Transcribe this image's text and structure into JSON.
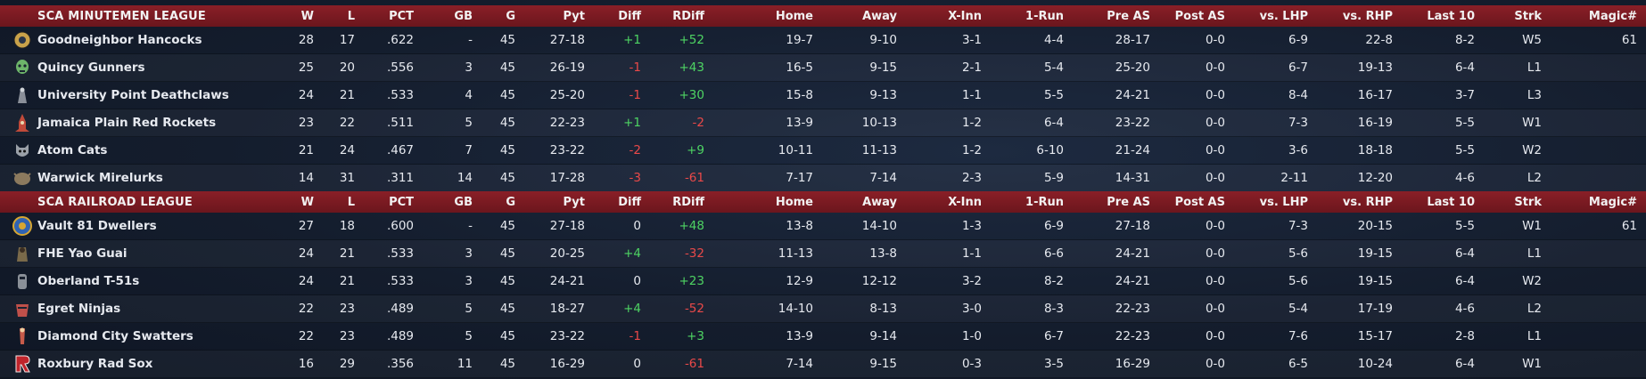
{
  "columns": [
    "W",
    "L",
    "PCT",
    "GB",
    "G",
    "Pyt",
    "Diff",
    "RDiff",
    "Home",
    "Away",
    "X-Inn",
    "1-Run",
    "Pre AS",
    "Post AS",
    "vs. LHP",
    "vs. RHP",
    "Last 10",
    "Strk",
    "Magic#"
  ],
  "leagues": [
    {
      "name": "SCA MINUTEMEN LEAGUE",
      "teams": [
        {
          "logo": "hancocks-logo",
          "name": "Goodneighbor Hancocks",
          "cells": [
            "28",
            "17",
            ".622",
            "-",
            "45",
            "27-18",
            "+1",
            "+52",
            "19-7",
            "9-10",
            "3-1",
            "4-4",
            "28-17",
            "0-0",
            "6-9",
            "22-8",
            "8-2",
            "W5",
            "61"
          ]
        },
        {
          "logo": "gunners-logo",
          "name": "Quincy Gunners",
          "cells": [
            "25",
            "20",
            ".556",
            "3",
            "45",
            "26-19",
            "-1",
            "+43",
            "16-5",
            "9-15",
            "2-1",
            "5-4",
            "25-20",
            "0-0",
            "6-7",
            "19-13",
            "6-4",
            "L1",
            ""
          ]
        },
        {
          "logo": "deathclaws-logo",
          "name": "University Point Deathclaws",
          "cells": [
            "24",
            "21",
            ".533",
            "4",
            "45",
            "25-20",
            "-1",
            "+30",
            "15-8",
            "9-13",
            "1-1",
            "5-5",
            "24-21",
            "0-0",
            "8-4",
            "16-17",
            "3-7",
            "L3",
            ""
          ]
        },
        {
          "logo": "red-rockets-logo",
          "name": "Jamaica Plain Red Rockets",
          "cells": [
            "23",
            "22",
            ".511",
            "5",
            "45",
            "22-23",
            "+1",
            "-2",
            "13-9",
            "10-13",
            "1-2",
            "6-4",
            "23-22",
            "0-0",
            "7-3",
            "16-19",
            "5-5",
            "W1",
            ""
          ]
        },
        {
          "logo": "atom-cats-logo",
          "name": "Atom Cats",
          "cells": [
            "21",
            "24",
            ".467",
            "7",
            "45",
            "23-22",
            "-2",
            "+9",
            "10-11",
            "11-13",
            "1-2",
            "6-10",
            "21-24",
            "0-0",
            "3-6",
            "18-18",
            "5-5",
            "W2",
            ""
          ]
        },
        {
          "logo": "mirelurks-logo",
          "name": "Warwick Mirelurks",
          "cells": [
            "14",
            "31",
            ".311",
            "14",
            "45",
            "17-28",
            "-3",
            "-61",
            "7-17",
            "7-14",
            "2-3",
            "5-9",
            "14-31",
            "0-0",
            "2-11",
            "12-20",
            "4-6",
            "L2",
            ""
          ]
        }
      ]
    },
    {
      "name": "SCA RAILROAD LEAGUE",
      "teams": [
        {
          "logo": "vault-81-logo",
          "name": "Vault 81 Dwellers",
          "cells": [
            "27",
            "18",
            ".600",
            "-",
            "45",
            "27-18",
            "0",
            "+48",
            "13-8",
            "14-10",
            "1-3",
            "6-9",
            "27-18",
            "0-0",
            "7-3",
            "20-15",
            "5-5",
            "W1",
            "61"
          ]
        },
        {
          "logo": "yao-guai-logo",
          "name": "FHE Yao Guai",
          "cells": [
            "24",
            "21",
            ".533",
            "3",
            "45",
            "20-25",
            "+4",
            "-32",
            "11-13",
            "13-8",
            "1-1",
            "6-6",
            "24-21",
            "0-0",
            "5-6",
            "19-15",
            "6-4",
            "L1",
            ""
          ]
        },
        {
          "logo": "t51s-logo",
          "name": "Oberland T-51s",
          "cells": [
            "24",
            "21",
            ".533",
            "3",
            "45",
            "24-21",
            "0",
            "+23",
            "12-9",
            "12-12",
            "3-2",
            "8-2",
            "24-21",
            "0-0",
            "5-6",
            "19-15",
            "6-4",
            "W2",
            ""
          ]
        },
        {
          "logo": "ninjas-logo",
          "name": "Egret Ninjas",
          "cells": [
            "22",
            "23",
            ".489",
            "5",
            "45",
            "18-27",
            "+4",
            "-52",
            "14-10",
            "8-13",
            "3-0",
            "8-3",
            "22-23",
            "0-0",
            "5-4",
            "17-19",
            "4-6",
            "L2",
            ""
          ]
        },
        {
          "logo": "swatters-logo",
          "name": "Diamond City Swatters",
          "cells": [
            "22",
            "23",
            ".489",
            "5",
            "45",
            "23-22",
            "-1",
            "+3",
            "13-9",
            "9-14",
            "1-0",
            "6-7",
            "22-23",
            "0-0",
            "7-6",
            "15-17",
            "2-8",
            "L1",
            ""
          ]
        },
        {
          "logo": "rad-sox-logo",
          "name": "Roxbury Rad Sox",
          "cells": [
            "16",
            "29",
            ".356",
            "11",
            "45",
            "16-29",
            "0",
            "-61",
            "7-14",
            "9-15",
            "0-3",
            "3-5",
            "16-29",
            "0-0",
            "6-5",
            "10-24",
            "6-4",
            "W1",
            ""
          ]
        }
      ]
    }
  ]
}
